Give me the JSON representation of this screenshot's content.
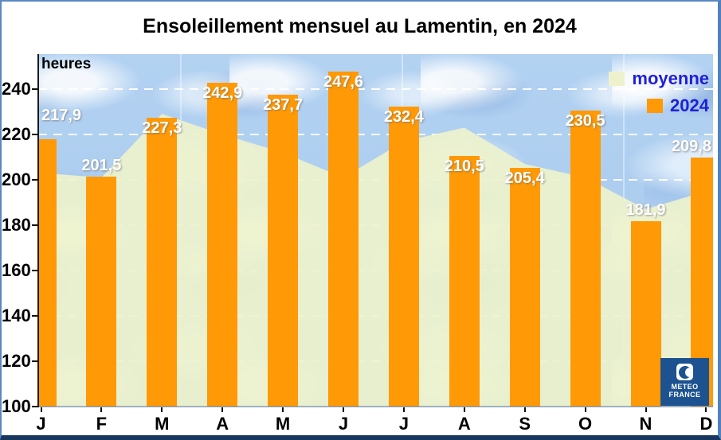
{
  "chart_data": {
    "type": "bar",
    "title": "Ensoleillement mensuel au Lamentin, en 2024",
    "unit_label": "heures",
    "categories": [
      "J",
      "F",
      "M",
      "A",
      "M",
      "J",
      "J",
      "A",
      "S",
      "O",
      "N",
      "D"
    ],
    "series": [
      {
        "name": "moyenne",
        "type": "area",
        "color": "#edf2cc",
        "values": [
          203,
          201,
          229,
          220,
          212,
          201,
          217,
          223,
          207,
          201,
          187,
          195
        ]
      },
      {
        "name": "2024",
        "type": "bar",
        "color": "#ff9905",
        "values": [
          217.9,
          201.5,
          227.3,
          242.9,
          237.7,
          247.6,
          232.4,
          210.5,
          205.4,
          230.5,
          181.9,
          209.8
        ]
      }
    ],
    "bar_value_labels": [
      "217,9",
      "201,5",
      "227,3",
      "242,9",
      "237,7",
      "247,6",
      "232,4",
      "210,5",
      "205,4",
      "230,5",
      "181,9",
      "209,8"
    ],
    "bar_label_placement": [
      "high",
      "above",
      "overlap",
      "overlap",
      "overlap",
      "overlap",
      "overlap",
      "overlap",
      "overlap",
      "overlap",
      "above",
      "above"
    ],
    "ylim": [
      100,
      255
    ],
    "yticks": [
      100,
      120,
      140,
      160,
      180,
      200,
      220,
      240
    ],
    "grid": true,
    "legend_position": "top-right"
  },
  "legend": {
    "items": [
      {
        "label": "moyenne",
        "color": "#edf2cc"
      },
      {
        "label": "2024",
        "color": "#ff9905"
      }
    ]
  },
  "logo": {
    "line1": "METEO",
    "line2": "FRANCE"
  },
  "colors": {
    "bar": "#ff9905",
    "area": "#edf2cc",
    "legend_text": "#2020d8",
    "sky": "#a9ccee",
    "gridline": "#ffffff",
    "logo_background": "#1d5291",
    "title_text": "#000000"
  }
}
